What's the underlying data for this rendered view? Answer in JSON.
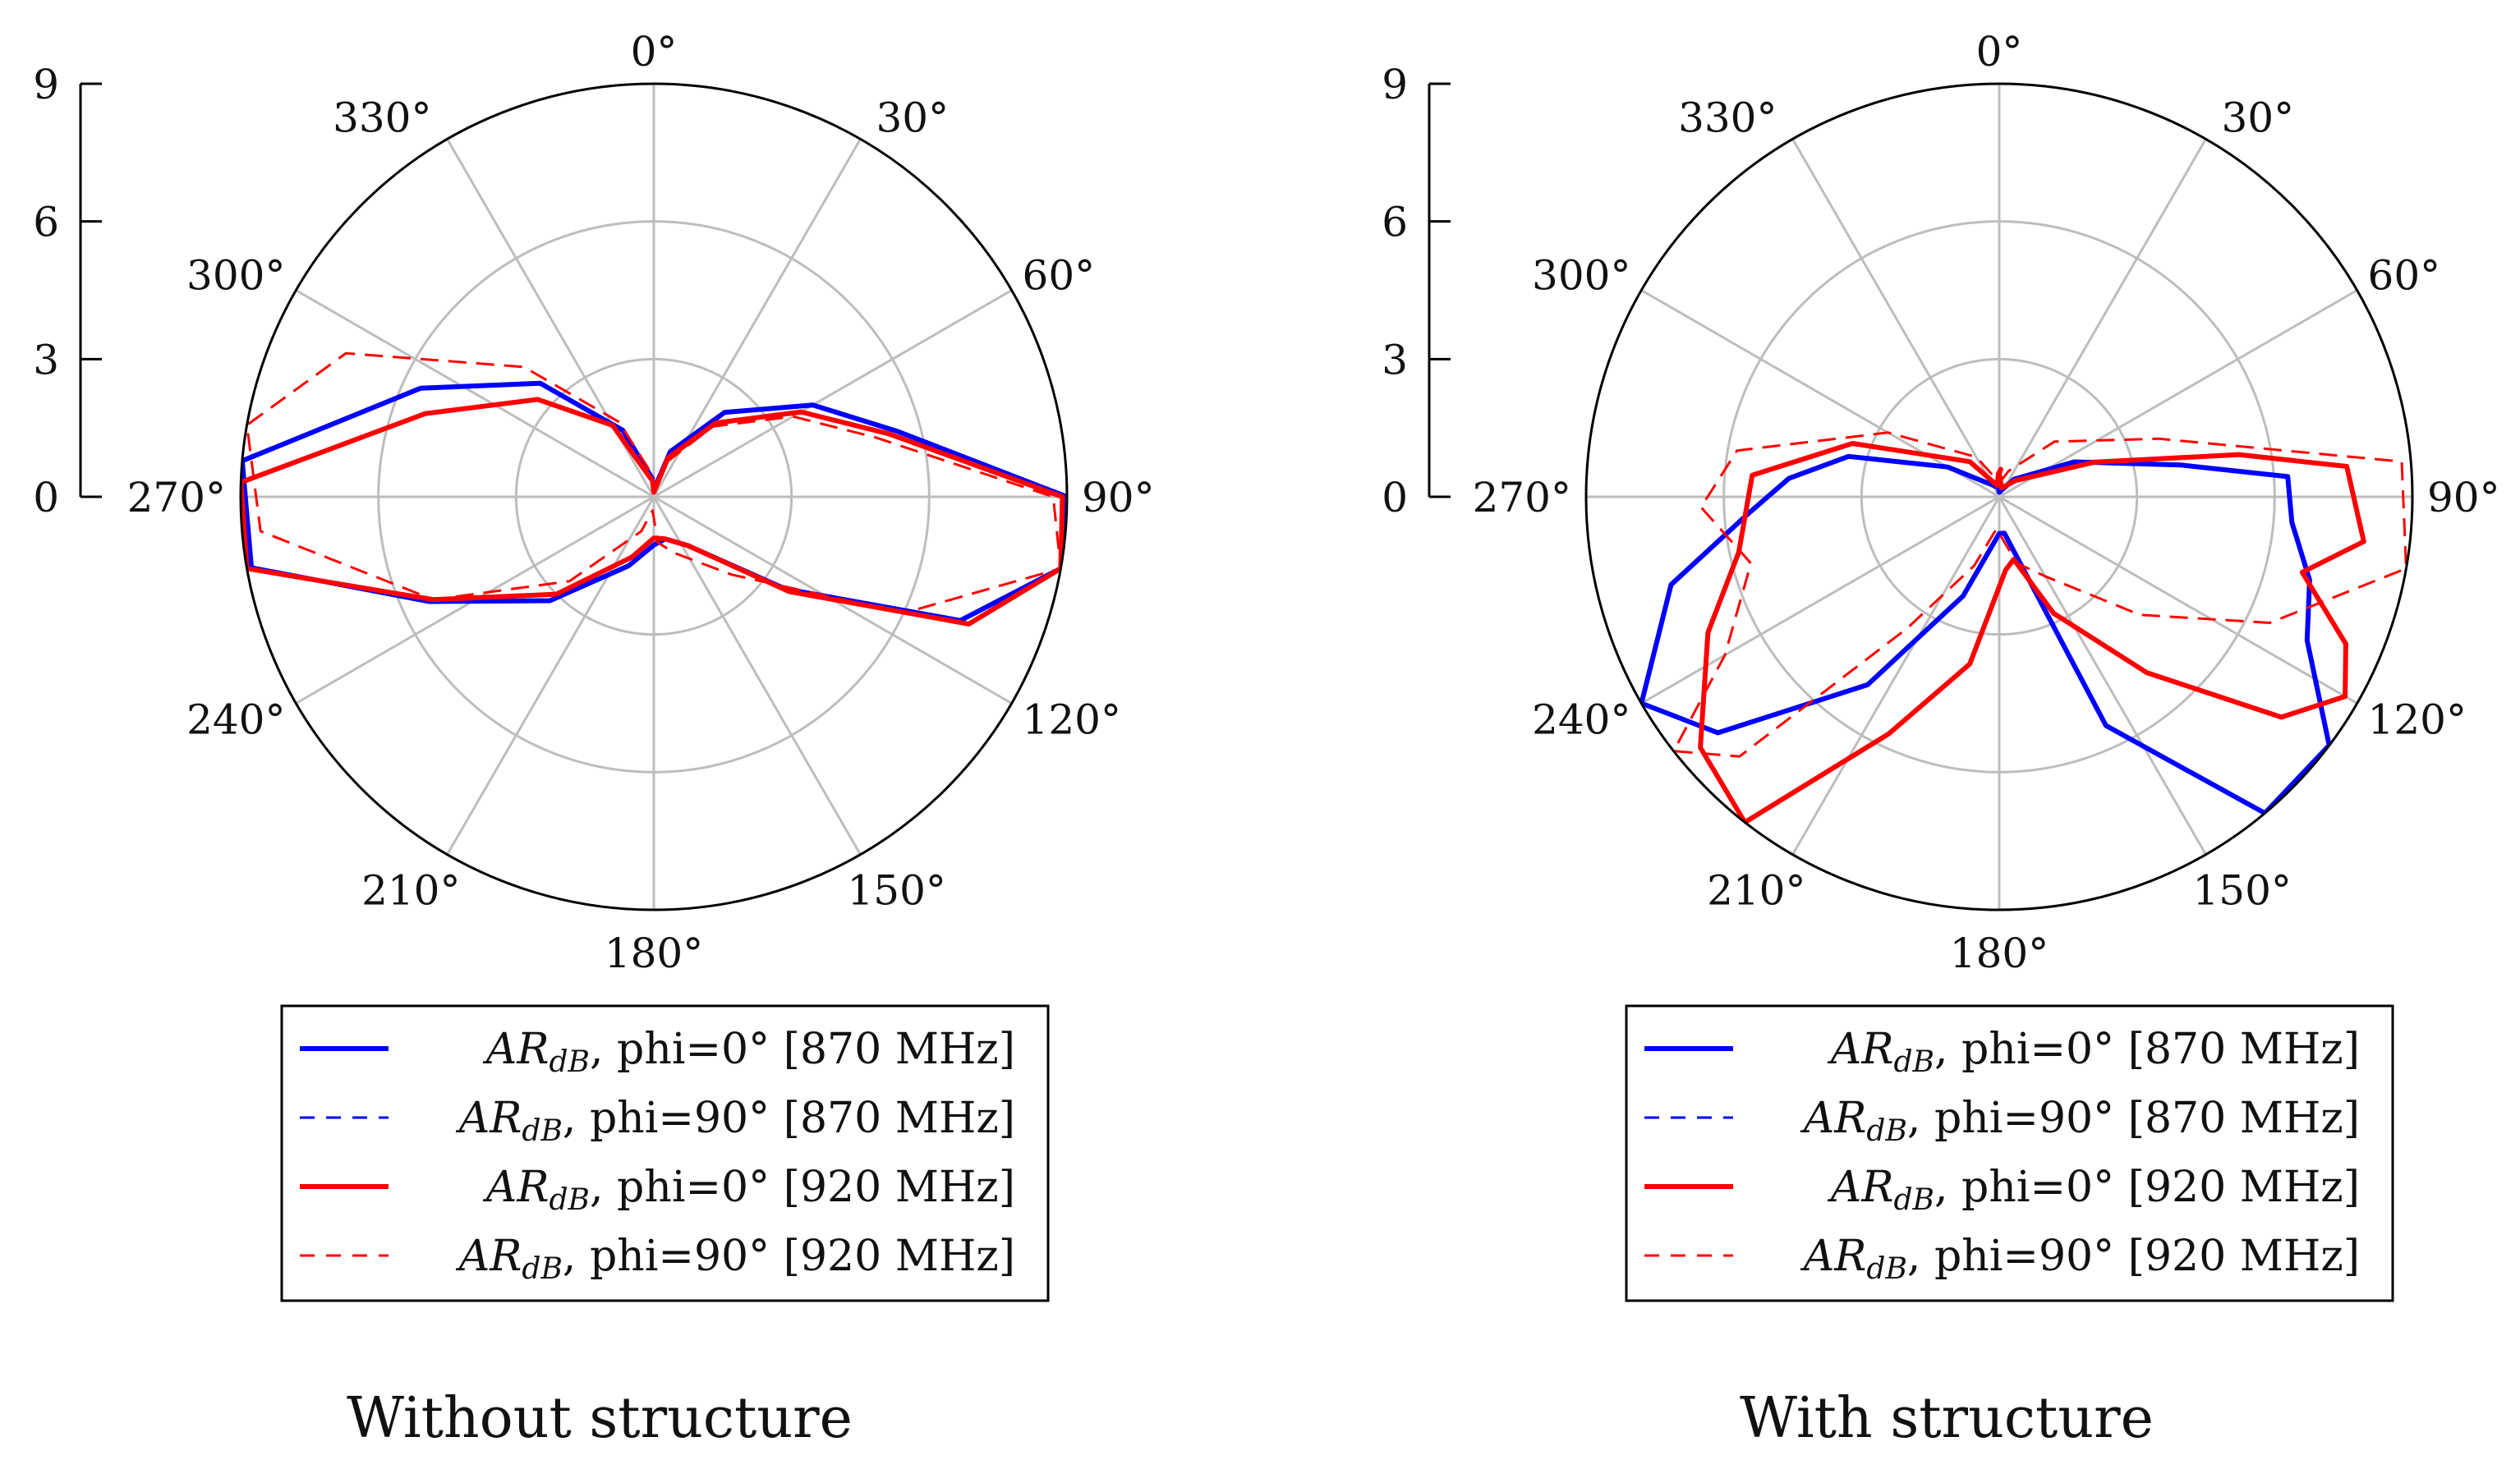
{
  "chart_data": [
    {
      "type": "polar-line",
      "caption": "Without structure",
      "radial_range": [
        0,
        9
      ],
      "radial_ticks": [
        "0",
        "3",
        "6",
        "9"
      ],
      "angle_ticks": [
        "0°",
        "30°",
        "60°",
        "90°",
        "120°",
        "150°",
        "180°",
        "210°",
        "240°",
        "270°",
        "300°",
        "330°"
      ],
      "legend": [
        {
          "symbol": "AR",
          "subscript": "dB",
          "text": ", phi=0° [870 MHz]",
          "color": "#0000ff",
          "dashed": false
        },
        {
          "symbol": "AR",
          "subscript": "dB",
          "text": ", phi=90° [870 MHz]",
          "color": "#0000ff",
          "dashed": true
        },
        {
          "symbol": "AR",
          "subscript": "dB",
          "text": ", phi=0° [920 MHz]",
          "color": "#ff0000",
          "dashed": false
        },
        {
          "symbol": "AR",
          "subscript": "dB",
          "text": ", phi=90° [920 MHz]",
          "color": "#ff0000",
          "dashed": true
        }
      ],
      "series": [
        {
          "name": "AR_dB, phi=0° [870 MHz]",
          "color": "#0000ff",
          "dashed": false,
          "points": [
            [
              0,
              0.15
            ],
            [
              20,
              1.05
            ],
            [
              40,
              2.4
            ],
            [
              60,
              4.0
            ],
            [
              75,
              5.5
            ],
            [
              90,
              9
            ],
            [
              100,
              9
            ],
            [
              112,
              7.2
            ],
            [
              125,
              3.5
            ],
            [
              145,
              1.3
            ],
            [
              165,
              0.95
            ],
            [
              180,
              1.05
            ],
            [
              200,
              1.6
            ],
            [
              225,
              3.2
            ],
            [
              245,
              5.4
            ],
            [
              260,
              8.9
            ],
            [
              275,
              9
            ],
            [
              295,
              5.6
            ],
            [
              315,
              3.5
            ],
            [
              335,
              1.6
            ],
            [
              355,
              0.4
            ]
          ]
        },
        {
          "name": "AR_dB, phi=0° [920 MHz]",
          "color": "#ff0000",
          "dashed": false,
          "points": [
            [
              0,
              0.1
            ],
            [
              20,
              0.9
            ],
            [
              40,
              2.1
            ],
            [
              60,
              3.7
            ],
            [
              75,
              5.3
            ],
            [
              90,
              8.9
            ],
            [
              100,
              9
            ],
            [
              112,
              7.4
            ],
            [
              125,
              3.6
            ],
            [
              145,
              1.3
            ],
            [
              165,
              0.95
            ],
            [
              180,
              0.9
            ],
            [
              200,
              1.4
            ],
            [
              225,
              3.0
            ],
            [
              245,
              5.3
            ],
            [
              260,
              9
            ],
            [
              272,
              9
            ],
            [
              290,
              5.3
            ],
            [
              310,
              3.3
            ],
            [
              330,
              1.8
            ],
            [
              355,
              0.35
            ]
          ]
        },
        {
          "name": "AR_dB, phi=90° [920 MHz]",
          "color": "#ff0000",
          "dashed": true,
          "points": [
            [
              0,
              0.2
            ],
            [
              20,
              0.8
            ],
            [
              40,
              2.0
            ],
            [
              60,
              3.5
            ],
            [
              75,
              5.0
            ],
            [
              90,
              8.7
            ],
            [
              100,
              9
            ],
            [
              115,
              6.0
            ],
            [
              135,
              2.4
            ],
            [
              160,
              1.3
            ],
            [
              175,
              1.0
            ],
            [
              185,
              0.3
            ],
            [
              200,
              0.8
            ],
            [
              225,
              2.6
            ],
            [
              245,
              5.3
            ],
            [
              265,
              8.6
            ],
            [
              280,
              9
            ],
            [
              295,
              7.4
            ],
            [
              315,
              4.0
            ],
            [
              335,
              1.8
            ],
            [
              355,
              0.5
            ]
          ]
        }
      ]
    },
    {
      "type": "polar-line",
      "caption": "With structure",
      "radial_range": [
        0,
        9
      ],
      "radial_ticks": [
        "0",
        "3",
        "6",
        "9"
      ],
      "angle_ticks": [
        "0°",
        "30°",
        "60°",
        "90°",
        "120°",
        "150°",
        "180°",
        "210°",
        "240°",
        "270°",
        "300°",
        "330°"
      ],
      "legend": [
        {
          "symbol": "AR",
          "subscript": "dB",
          "text": ", phi=0° [870 MHz]",
          "color": "#0000ff",
          "dashed": false
        },
        {
          "symbol": "AR",
          "subscript": "dB",
          "text": ", phi=90° [870 MHz]",
          "color": "#0000ff",
          "dashed": true
        },
        {
          "symbol": "AR",
          "subscript": "dB",
          "text": ", phi=0° [920 MHz]",
          "color": "#ff0000",
          "dashed": false
        },
        {
          "symbol": "AR",
          "subscript": "dB",
          "text": ", phi=90° [920 MHz]",
          "color": "#ff0000",
          "dashed": true
        }
      ],
      "series": [
        {
          "name": "AR_dB, phi=0° [870 MHz]",
          "color": "#0000ff",
          "dashed": false,
          "points": [
            [
              0,
              0.1
            ],
            [
              40,
              0.5
            ],
            [
              65,
              1.8
            ],
            [
              80,
              4.0
            ],
            [
              86,
              6.3
            ],
            [
              95,
              6.4
            ],
            [
              105,
              7.0
            ],
            [
              115,
              7.4
            ],
            [
              127,
              9.0
            ],
            [
              140,
              9.0
            ],
            [
              155,
              5.5
            ],
            [
              172,
              0.8
            ],
            [
              180,
              0.8
            ],
            [
              200,
              2.3
            ],
            [
              215,
              5.0
            ],
            [
              230,
              8.0
            ],
            [
              240,
              9.0
            ],
            [
              255,
              7.4
            ],
            [
              266,
              5.5
            ],
            [
              275,
              4.6
            ],
            [
              285,
              3.4
            ],
            [
              300,
              1.3
            ],
            [
              330,
              0.3
            ],
            [
              355,
              0.2
            ]
          ]
        },
        {
          "name": "AR_dB, phi=0° [920 MHz]",
          "color": "#ff0000",
          "dashed": false,
          "points": [
            [
              0,
              0.5
            ],
            [
              15,
              0.2
            ],
            [
              45,
              0.5
            ],
            [
              70,
              2.2
            ],
            [
              80,
              5.3
            ],
            [
              85,
              7.6
            ],
            [
              97,
              8.0
            ],
            [
              104,
              6.8
            ],
            [
              113,
              8.2
            ],
            [
              120,
              8.7
            ],
            [
              128,
              7.8
            ],
            [
              140,
              5.0
            ],
            [
              155,
              2.8
            ],
            [
              167,
              1.4
            ],
            [
              175,
              1.6
            ],
            [
              190,
              3.7
            ],
            [
              205,
              5.7
            ],
            [
              218,
              9.0
            ],
            [
              230,
              8.5
            ],
            [
              245,
              7.0
            ],
            [
              258,
              5.8
            ],
            [
              275,
              5.4
            ],
            [
              290,
              3.4
            ],
            [
              320,
              1.0
            ],
            [
              350,
              0.25
            ],
            [
              358,
              0.5
            ],
            [
              3,
              0.6
            ]
          ]
        },
        {
          "name": "AR_dB, phi=90° [920 MHz]",
          "color": "#ff0000",
          "dashed": true,
          "points": [
            [
              0,
              0.3
            ],
            [
              20,
              0.6
            ],
            [
              45,
              1.7
            ],
            [
              70,
              3.7
            ],
            [
              85,
              8.8
            ],
            [
              100,
              9.0
            ],
            [
              115,
              6.5
            ],
            [
              130,
              4.0
            ],
            [
              150,
              2.0
            ],
            [
              165,
              1.5
            ],
            [
              185,
              0.7
            ],
            [
              200,
              1.6
            ],
            [
              215,
              3.5
            ],
            [
              225,
              8.0
            ],
            [
              232,
              9.0
            ],
            [
              240,
              6.9
            ],
            [
              255,
              5.6
            ],
            [
              268,
              6.5
            ],
            [
              280,
              5.8
            ],
            [
              300,
              2.8
            ],
            [
              330,
              1.0
            ],
            [
              350,
              0.4
            ]
          ]
        }
      ]
    }
  ]
}
